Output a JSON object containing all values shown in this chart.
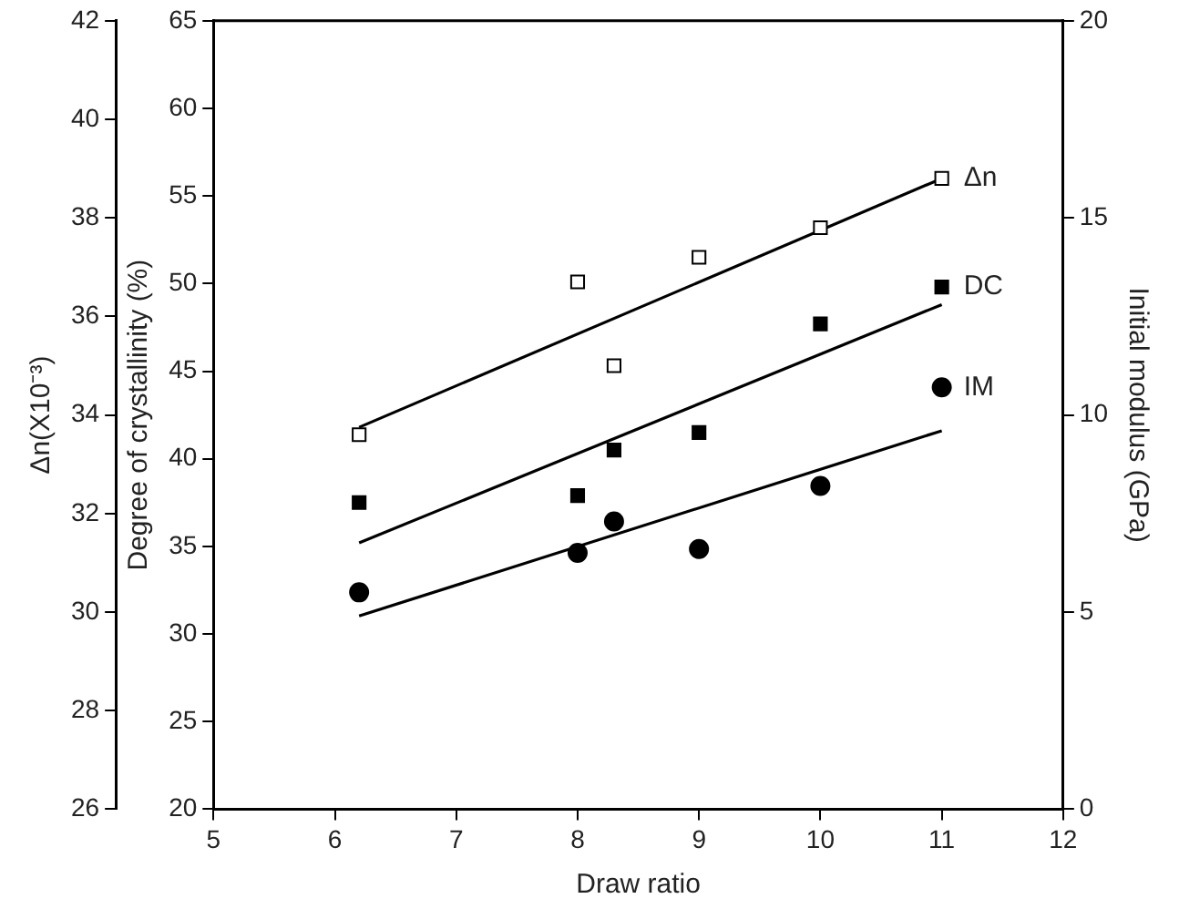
{
  "chart_data": {
    "type": "scatter",
    "xlabel": "Draw ratio",
    "ylabel": "Degree of crystallinity (%)",
    "y2label": "Initial modulus (GPa)",
    "y3label": "Δn(X10⁻³)",
    "xlim": [
      5,
      12
    ],
    "xticks": [
      5,
      6,
      7,
      8,
      9,
      10,
      11,
      12
    ],
    "ylim": [
      20,
      65
    ],
    "yticks": [
      20,
      25,
      30,
      35,
      40,
      45,
      50,
      55,
      60,
      65
    ],
    "y2lim": [
      0,
      20
    ],
    "y2ticks": [
      0,
      5,
      10,
      15,
      20
    ],
    "y3lim": [
      26,
      42
    ],
    "y3ticks": [
      26,
      28,
      30,
      32,
      34,
      36,
      38,
      40,
      42
    ],
    "grid": false,
    "legend": false,
    "series": [
      {
        "name": "Δn",
        "axis": "y3",
        "marker": "square",
        "color": "#ffffff",
        "x": [
          6.2,
          8,
          8.3,
          9,
          10,
          11
        ],
        "values": [
          33.6,
          36.7,
          35.0,
          37.2,
          37.8,
          38.8
        ]
      },
      {
        "name": "DC",
        "axis": "y",
        "marker": "square",
        "color": "#000000",
        "x": [
          6.2,
          8,
          8.3,
          9,
          10,
          11
        ],
        "values": [
          37.5,
          37.9,
          40.5,
          41.5,
          47.7,
          49.8
        ]
      },
      {
        "name": "IM",
        "axis": "y2",
        "marker": "circle",
        "color": "#000000",
        "x": [
          6.2,
          8,
          8.3,
          9,
          10,
          11
        ],
        "values": [
          5.5,
          6.5,
          7.3,
          6.6,
          8.2,
          10.7
        ]
      },
      {
        "type": "line",
        "axis": "y3",
        "marker": "none",
        "color": "#000000",
        "x": [
          6.2,
          11
        ],
        "values": [
          33.75,
          38.8
        ]
      },
      {
        "type": "line",
        "axis": "y",
        "marker": "none",
        "color": "#000000",
        "x": [
          6.2,
          11
        ],
        "values": [
          35.2,
          48.8
        ]
      },
      {
        "type": "line",
        "axis": "y2",
        "marker": "none",
        "color": "#000000",
        "x": [
          6.2,
          11
        ],
        "values": [
          4.9,
          9.6
        ]
      }
    ]
  }
}
